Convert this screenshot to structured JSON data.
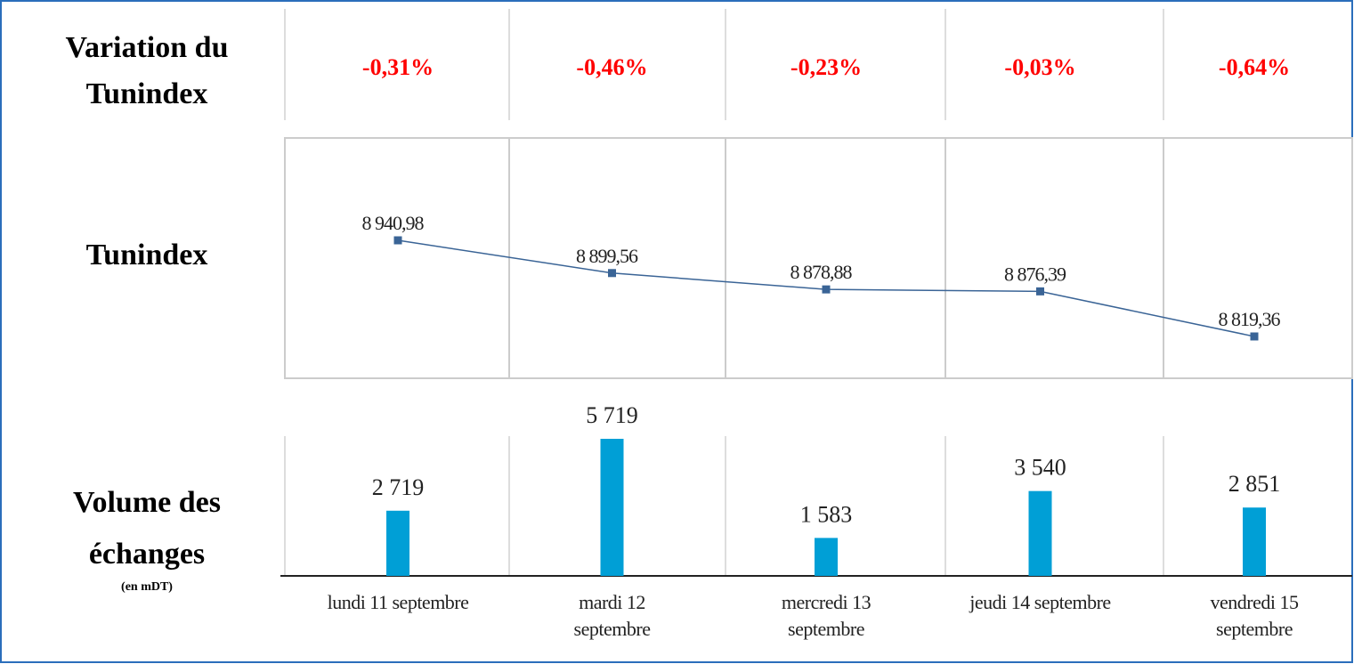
{
  "variation": {
    "label": "Variation du Tunindex",
    "cells": [
      "-0,31%",
      "-0,46%",
      "-0,23%",
      "-0,03%",
      "-0,64%"
    ]
  },
  "chart_data": [
    {
      "type": "line",
      "title": "Tunindex",
      "color": "#3a6496",
      "values": [
        8940.98,
        8899.56,
        8878.88,
        8876.39,
        8819.36
      ],
      "value_labels": [
        "8 940,98",
        "8 899,56",
        "8 878,88",
        "8 876,39",
        "8 819,36"
      ]
    },
    {
      "type": "bar",
      "title": "Volume des échanges",
      "subtitle": "(en mDT)",
      "color": "#009fd6",
      "categories": [
        "lundi 11 septembre",
        "mardi 12 septembre",
        "mercredi 13 septembre",
        "jeudi 14 septembre",
        "vendredi 15 septembre"
      ],
      "values": [
        2719,
        5719,
        1583,
        3540,
        2851
      ],
      "value_labels": [
        "2 719",
        "5 719",
        "1 583",
        "3 540",
        "2 851"
      ]
    }
  ]
}
